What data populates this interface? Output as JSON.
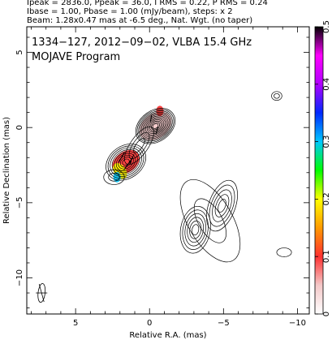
{
  "header": {
    "line1": "Ipeak = 2836.0, Ppeak = 36.0, I RMS = 0.22, P RMS = 0.24",
    "line2": "Ibase = 1.00, Pbase = 1.00 (mJy/beam), steps: x 2",
    "line3": "Beam: 1.28x0.47 mas at -6.5 deg., Nat. Wgt. (no taper)"
  },
  "annotation": {
    "line1": "1334−127, 2012−09−02, VLBA 15.4 GHz",
    "line2": "MOJAVE Program"
  },
  "chart_data": {
    "type": "contour",
    "xlabel": "Relative R.A. (mas)",
    "ylabel": "Relative Declination (mas)",
    "xlim": [
      8.3,
      -10.8
    ],
    "ylim": [
      -12.4,
      6.7
    ],
    "x_ticks": [
      5,
      0,
      -5,
      -10
    ],
    "y_ticks": [
      5,
      0,
      -5,
      -10
    ],
    "x_tick_labels": [
      "5",
      "0",
      "−5",
      "−10"
    ],
    "y_tick_labels": [
      "5",
      "0",
      "−5",
      "−10"
    ],
    "colorbar": {
      "min": 0,
      "max": 0.5,
      "ticks": [
        0,
        0.1,
        0.2,
        0.3,
        0.4,
        0.5
      ],
      "tick_labels": [
        "0",
        "0.1",
        "0.2",
        "0.3",
        "0.4",
        "0.5"
      ],
      "colors": [
        "#ffffff",
        "#f4c8c8",
        "#ff3030",
        "#ff9a00",
        "#ffff00",
        "#00ff00",
        "#00c8ff",
        "#0028ff",
        "#b000ff",
        "#ff00ff",
        "#000000"
      ]
    },
    "contour_groups": [
      {
        "name": "core",
        "x": -0.4,
        "y": 0.1,
        "a": 1.45,
        "b": 1.05,
        "angle": -35,
        "levels": 13
      },
      {
        "name": "inner-jet",
        "x": 1.6,
        "y": -2.3,
        "a": 1.45,
        "b": 1.1,
        "angle": -35,
        "levels": 9
      },
      {
        "name": "neck",
        "x": 0.7,
        "y": -1.2,
        "a": 1.5,
        "b": 0.6,
        "angle": -55,
        "levels": 3
      },
      {
        "name": "jet-tail",
        "x": 2.4,
        "y": -3.3,
        "a": 0.7,
        "b": 0.5,
        "angle": 0,
        "levels": 2
      },
      {
        "name": "outer-jet-east",
        "x": -3.1,
        "y": -6.8,
        "a": 1.0,
        "b": 1.6,
        "angle": 10,
        "levels": 6
      },
      {
        "name": "outer-jet-west",
        "x": -4.9,
        "y": -5.2,
        "a": 0.9,
        "b": 1.8,
        "angle": 20,
        "levels": 5
      },
      {
        "name": "outer-envelope",
        "x": -4.1,
        "y": -6.2,
        "a": 3.1,
        "b": 1.5,
        "angle": 60,
        "levels": 2
      },
      {
        "name": "knot-west",
        "x": -8.6,
        "y": 2.1,
        "a": 0.35,
        "b": 0.3,
        "angle": 0,
        "levels": 2
      },
      {
        "name": "knot-south",
        "x": -9.1,
        "y": -8.3,
        "a": 0.5,
        "b": 0.3,
        "angle": 0,
        "levels": 1
      }
    ],
    "color_patches": [
      {
        "x": 1.6,
        "y": -2.3,
        "a": 1.0,
        "b": 0.7,
        "angle": -35,
        "value": 0.08
      },
      {
        "x": 2.0,
        "y": -2.9,
        "a": 0.4,
        "b": 0.6,
        "angle": -35,
        "value": 0.19
      },
      {
        "x": 2.2,
        "y": -3.3,
        "a": 0.25,
        "b": 0.35,
        "angle": 0,
        "value": 0.3
      },
      {
        "x": -0.4,
        "y": 0.1,
        "a": 1.2,
        "b": 0.85,
        "angle": -35,
        "value": 0.03
      },
      {
        "x": -0.7,
        "y": 1.1,
        "a": 0.25,
        "b": 0.35,
        "angle": 0,
        "value": 0.08
      }
    ],
    "polarization_vectors": [
      {
        "x": 1.9,
        "y": -2.0,
        "angle": 60,
        "length": 0.8
      },
      {
        "x": 1.5,
        "y": -2.5,
        "angle": 55,
        "length": 0.8
      },
      {
        "x": 1.2,
        "y": -2.1,
        "angle": 65,
        "length": 0.7
      },
      {
        "x": -0.1,
        "y": 0.6,
        "angle": 80,
        "length": 0.5
      },
      {
        "x": -0.5,
        "y": -0.2,
        "angle": 75,
        "length": 0.5
      }
    ],
    "beam": {
      "x": 7.3,
      "y": -11.0,
      "major": 1.28,
      "minor": 0.47,
      "pa": -6.5
    }
  }
}
